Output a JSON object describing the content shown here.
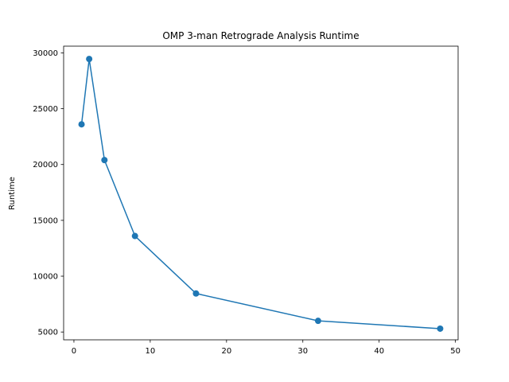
{
  "chart_data": {
    "type": "line",
    "title": "OMP 3-man Retrograde Analysis Runtime",
    "xlabel": "",
    "ylabel": "Runtime",
    "xlim": [
      -1.35,
      50.35
    ],
    "ylim": [
      4300,
      30600
    ],
    "xticks": [
      0,
      10,
      20,
      30,
      40,
      50
    ],
    "yticks": [
      5000,
      10000,
      15000,
      20000,
      25000,
      30000
    ],
    "grid": false,
    "legend": "none",
    "series": [
      {
        "color": "#1f77b4",
        "marker": "circle",
        "points": [
          {
            "x": 1,
            "y": 23600
          },
          {
            "x": 2,
            "y": 29450
          },
          {
            "x": 4,
            "y": 20400
          },
          {
            "x": 8,
            "y": 13600
          },
          {
            "x": 16,
            "y": 8450
          },
          {
            "x": 32,
            "y": 6000
          },
          {
            "x": 48,
            "y": 5300
          }
        ]
      }
    ]
  }
}
